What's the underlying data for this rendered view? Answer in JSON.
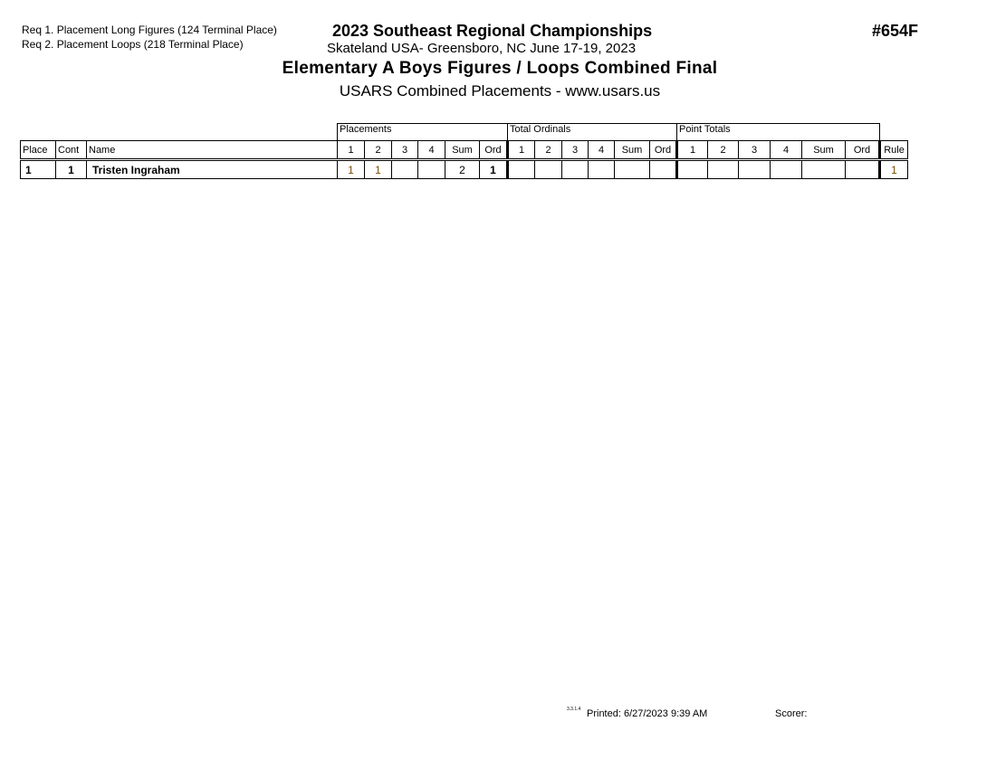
{
  "requirements": [
    "Req  1.  Placement Long Figures (124 Terminal Place)",
    "Req  2.  Placement Loops (218 Terminal Place)"
  ],
  "title": "2023 Southeast Regional Championships",
  "subtitle": "Skateland USA- Greensboro, NC  June 17-19, 2023",
  "event": "Elementary A Boys Figures / Loops Combined Final",
  "usars": "USARS Combined Placements - www.usars.us",
  "event_number": "#654F",
  "groups": [
    "Placements",
    "Total Ordinals",
    "Point Totals"
  ],
  "headers": [
    "Place",
    "Cont",
    "Name",
    "1",
    "2",
    "3",
    "4",
    "Sum",
    "Ord",
    "1",
    "2",
    "3",
    "4",
    "Sum",
    "Ord",
    "1",
    "2",
    "3",
    "4",
    "Sum",
    "Ord",
    "Rule"
  ],
  "rows": [
    [
      "1",
      "1",
      "Tristen Ingraham",
      "1",
      "1",
      "",
      "",
      "2",
      "1",
      "",
      "",
      "",
      "",
      "",
      "",
      "",
      "",
      "",
      "",
      "",
      "",
      "1"
    ]
  ],
  "footer": {
    "version": "3.3.1.4",
    "printed": "Printed:  6/27/2023  9:39 AM",
    "scorer": "Scorer:"
  }
}
